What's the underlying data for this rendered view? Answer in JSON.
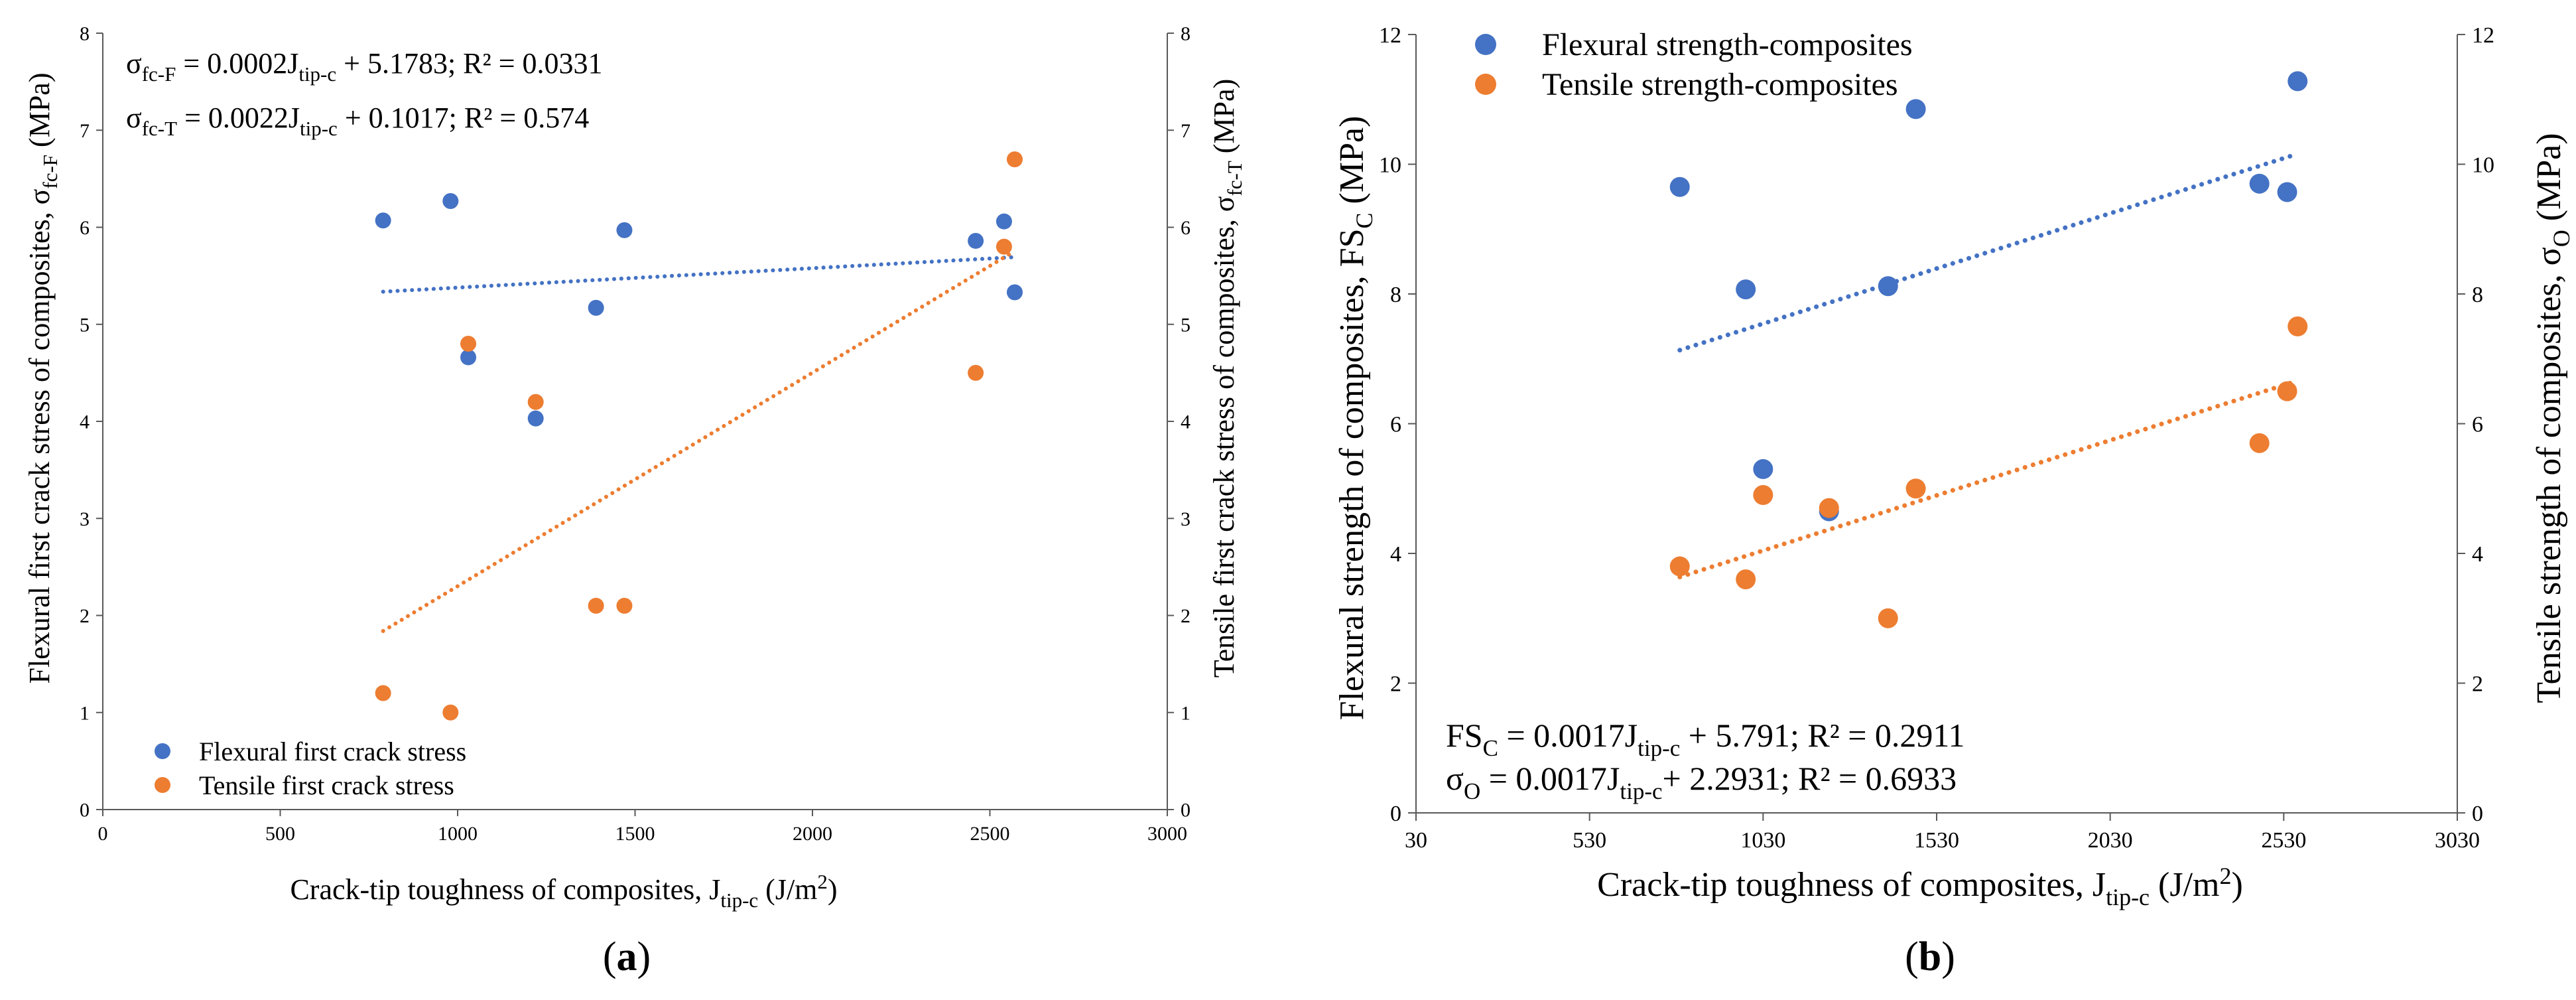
{
  "panels": {
    "a": {
      "label": "(a)",
      "letter": "a"
    },
    "b": {
      "label": "(b)",
      "letter": "b"
    }
  },
  "colors": {
    "blue": "#4472C4",
    "orange": "#ED7D31",
    "axis": "#595959"
  },
  "chart_data": [
    {
      "id": "a",
      "type": "scatter",
      "title": "",
      "xlabel": "Crack-tip toughness of composites, J_tip-c (J/m²)",
      "ylabel_left": "Flexural first crack stress of composites, σ_fc-F (MPa)",
      "ylabel_right": "Tensile first crack stress of composites, σ_fc-T (MPa)",
      "xlim": [
        0,
        3000
      ],
      "ylim": [
        0,
        8
      ],
      "y2lim": [
        0,
        8
      ],
      "x_ticks": [
        0,
        500,
        1000,
        1500,
        2000,
        2500,
        3000
      ],
      "y_ticks": [
        0,
        1,
        2,
        3,
        4,
        5,
        6,
        7,
        8
      ],
      "y2_ticks": [
        0,
        1,
        2,
        3,
        4,
        5,
        6,
        7,
        8
      ],
      "grid": false,
      "legend_position": "bottom-left",
      "series": [
        {
          "name": "Flexural first crack stress",
          "color": "blue",
          "axis": "left",
          "points": [
            [
              790,
              6.07
            ],
            [
              980,
              6.27
            ],
            [
              1030,
              4.66
            ],
            [
              1220,
              4.03
            ],
            [
              1390,
              5.17
            ],
            [
              1470,
              5.97
            ],
            [
              2460,
              5.86
            ],
            [
              2540,
              6.06
            ],
            [
              2570,
              5.33
            ]
          ],
          "trendline": {
            "slope": 0.0002,
            "intercept": 5.1783,
            "x_range": [
              790,
              2570
            ]
          }
        },
        {
          "name": "Tensile first crack stress",
          "color": "orange",
          "axis": "right",
          "points": [
            [
              790,
              1.2
            ],
            [
              980,
              1.0
            ],
            [
              1030,
              4.8
            ],
            [
              1220,
              4.2
            ],
            [
              1390,
              2.1
            ],
            [
              1470,
              2.1
            ],
            [
              2460,
              4.5
            ],
            [
              2540,
              5.8
            ],
            [
              2570,
              6.7
            ]
          ],
          "trendline": {
            "slope": 0.0022,
            "intercept": 0.1017,
            "x_range": [
              790,
              2570
            ]
          }
        }
      ],
      "equations": [
        {
          "symbol": "σ",
          "sub": "fc-F",
          "mid": " = 0.0002J",
          "sub2": "tip-c",
          "tail": " + 5.1783; R² = 0.0331"
        },
        {
          "symbol": "σ",
          "sub": "fc-T",
          "mid": " = 0.0022J",
          "sub2": "tip-c",
          "tail": " + 0.1017; R² = 0.574"
        }
      ]
    },
    {
      "id": "b",
      "type": "scatter",
      "title": "",
      "xlabel": "Crack-tip toughness of composites, J_tip-c (J/m²)",
      "ylabel_left": "Flexural strength of composites, FS_C (MPa)",
      "ylabel_right": "Tensile strength of composites, σ_O (MPa)",
      "xlim": [
        30,
        3030
      ],
      "ylim": [
        0,
        12
      ],
      "y2lim": [
        0,
        12
      ],
      "x_ticks": [
        30,
        530,
        1030,
        1530,
        2030,
        2530,
        3030
      ],
      "y_ticks": [
        0,
        2,
        4,
        6,
        8,
        10,
        12
      ],
      "y2_ticks": [
        0,
        2,
        4,
        6,
        8,
        10,
        12
      ],
      "grid": false,
      "legend_position": "top-left",
      "series": [
        {
          "name": "Flexural strength-composites",
          "color": "blue",
          "axis": "left",
          "points": [
            [
              790,
              9.65
            ],
            [
              980,
              8.07
            ],
            [
              1030,
              5.3
            ],
            [
              1220,
              4.65
            ],
            [
              1390,
              8.12
            ],
            [
              1470,
              10.85
            ],
            [
              2460,
              9.7
            ],
            [
              2540,
              9.57
            ],
            [
              2570,
              11.28
            ]
          ],
          "trendline": {
            "slope": 0.0017,
            "intercept": 5.791,
            "x_range": [
              790,
              2570
            ]
          }
        },
        {
          "name": "Tensile strength-composites",
          "color": "orange",
          "axis": "right",
          "points": [
            [
              790,
              3.8
            ],
            [
              980,
              3.6
            ],
            [
              1030,
              4.9
            ],
            [
              1220,
              4.7
            ],
            [
              1390,
              3.0
            ],
            [
              1470,
              5.0
            ],
            [
              2460,
              5.7
            ],
            [
              2540,
              6.5
            ],
            [
              2570,
              7.5
            ]
          ],
          "trendline": {
            "slope": 0.0017,
            "intercept": 2.2931,
            "x_range": [
              790,
              2570
            ]
          }
        }
      ],
      "equations": [
        {
          "symbol": "FS",
          "sub": "C",
          "mid": " = 0.0017J",
          "sub2": "tip-c",
          "tail": " + 5.791; R² = 0.2911"
        },
        {
          "symbol": "σ",
          "sub": "O",
          "mid": " = 0.0017J",
          "sub2": "tip-c",
          "tail": "+ 2.2931; R² = 0.6933"
        }
      ]
    }
  ]
}
